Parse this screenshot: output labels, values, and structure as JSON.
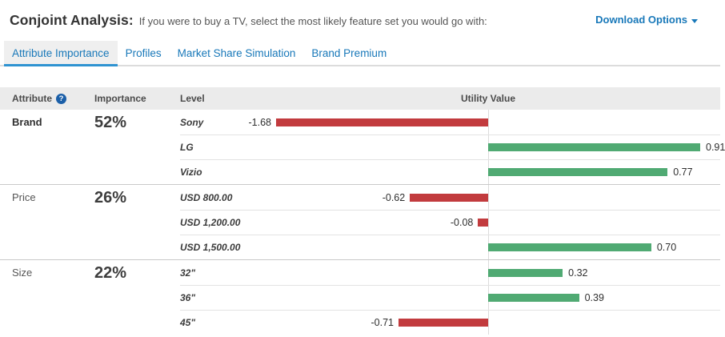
{
  "header": {
    "title": "Conjoint Analysis:",
    "subtitle": "If you were to buy a TV, select the most likely feature set you would go with:",
    "download_label": "Download Options"
  },
  "tabs": [
    {
      "label": "Attribute Importance",
      "active": true
    },
    {
      "label": "Profiles",
      "active": false
    },
    {
      "label": "Market Share Simulation",
      "active": false
    },
    {
      "label": "Brand Premium",
      "active": false
    }
  ],
  "table": {
    "columns": [
      "Attribute",
      "Importance",
      "Level",
      "Utility Value"
    ],
    "help_icon": "?"
  },
  "chart_data": {
    "type": "bar",
    "orientation": "horizontal",
    "value_label": "Utility Value",
    "negative_color": "#c23b3e",
    "positive_color": "#50aa73",
    "negative_axis_max": 1.68,
    "positive_axis_max": 0.91,
    "groups": [
      {
        "attribute": "Brand",
        "importance": "52%",
        "bold": true,
        "levels": [
          {
            "label": "Sony",
            "value": -1.68
          },
          {
            "label": "LG",
            "value": 0.91
          },
          {
            "label": "Vizio",
            "value": 0.77
          }
        ]
      },
      {
        "attribute": "Price",
        "importance": "26%",
        "bold": false,
        "levels": [
          {
            "label": "USD 800.00",
            "value": -0.62
          },
          {
            "label": "USD 1,200.00",
            "value": -0.08
          },
          {
            "label": "USD 1,500.00",
            "value": 0.7
          }
        ]
      },
      {
        "attribute": "Size",
        "importance": "22%",
        "bold": false,
        "levels": [
          {
            "label": "32\"",
            "value": 0.32
          },
          {
            "label": "36\"",
            "value": 0.39
          },
          {
            "label": "45\"",
            "value": -0.71
          }
        ]
      }
    ]
  }
}
